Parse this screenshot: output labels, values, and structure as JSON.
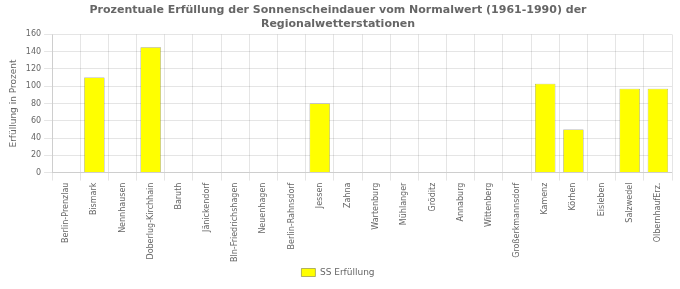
{
  "chart_data": {
    "type": "bar",
    "title": "Prozentuale Erfüllung der Sonnenscheindauer vom Normalwert (1961-1990) der\nRegionalwetterstationen",
    "y_label": "Erfüllung in Prozent",
    "categories": [
      "Berlin-Prenzlau",
      "Bismark",
      "Nennhausen",
      "Doberlug-Kirchhain",
      "Baruth",
      "Jänickendorf",
      "Bln-Friedrichshagen",
      "Neuenhagen",
      "Berlin-Rahnsdorf",
      "Jessen",
      "Zahna",
      "Wartenburg",
      "Mühlanger",
      "Gröditz",
      "Annaburg",
      "Wittenberg",
      "Großerkmannsdorf",
      "Kamenz",
      "Körhen",
      "Eisleben",
      "Salzwedel",
      "OlbernhaufErz."
    ],
    "series": [
      {
        "name": "SS Erfüllung",
        "color": "#ffff00",
        "values": [
          0,
          110,
          0,
          145,
          0,
          0,
          0,
          0,
          0,
          80,
          0,
          0,
          0,
          0,
          0,
          0,
          0,
          103,
          50,
          0,
          97,
          97
        ]
      }
    ],
    "ylim": [
      0,
      160
    ],
    "yticks": [
      0,
      20,
      40,
      60,
      80,
      100,
      120,
      140,
      160
    ],
    "grid": true,
    "legend": "bottom"
  }
}
